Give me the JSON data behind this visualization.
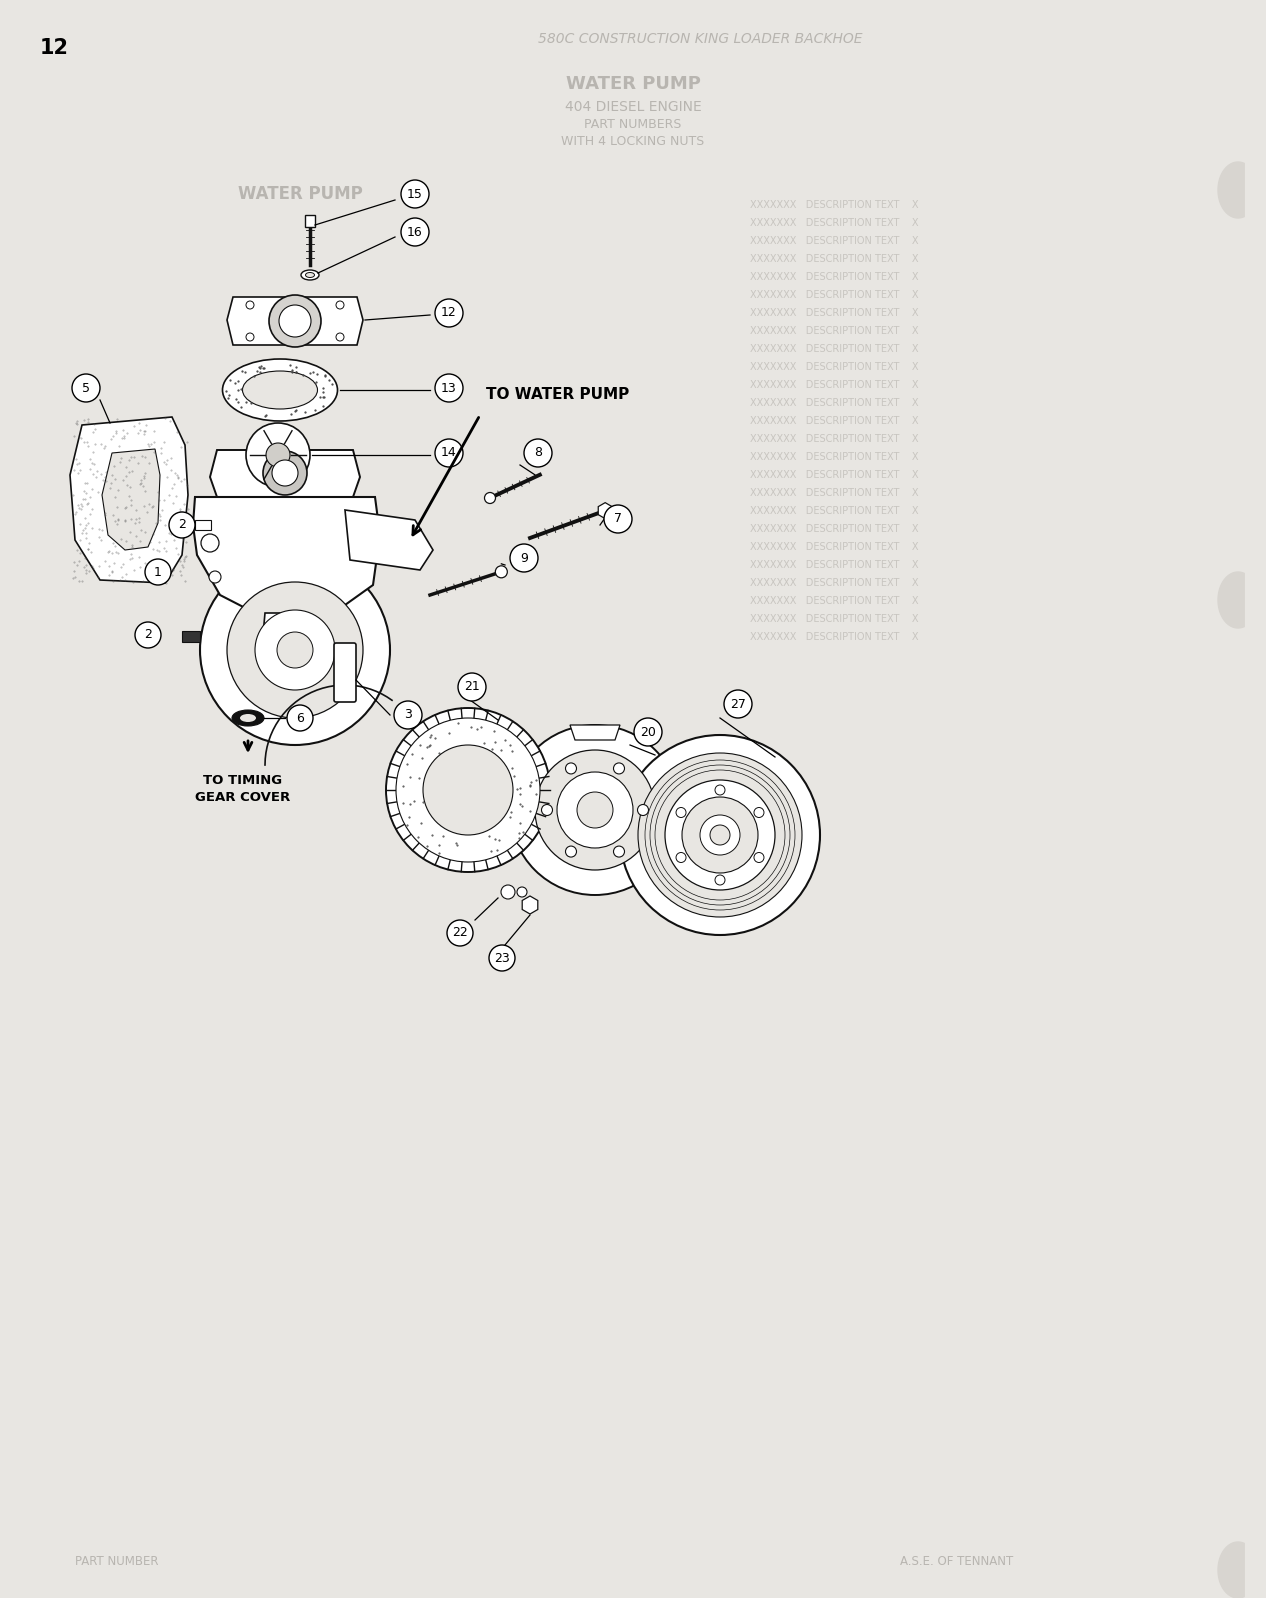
{
  "page_number": "12",
  "header_text": "580C CONSTRUCTION KING LOADER BACKHOE",
  "title_lines": [
    "WATER PUMP",
    "404 DIESEL ENGINE",
    "PART NUMBERS",
    "WITH 4 LOCKING NUTS"
  ],
  "section_header": "WATER PUMP",
  "footer_left": "PART NUMBER",
  "footer_right": "A.S.E. OF TENNANT",
  "bg_color": "#e8e6e2",
  "annotation_to_water_pump": "TO WATER PUMP",
  "annotation_to_timing": "TO TIMING\nGEAR COVER",
  "label_color": "black",
  "part_edge_color": "#111111",
  "faded_color": "#b8b5b0"
}
